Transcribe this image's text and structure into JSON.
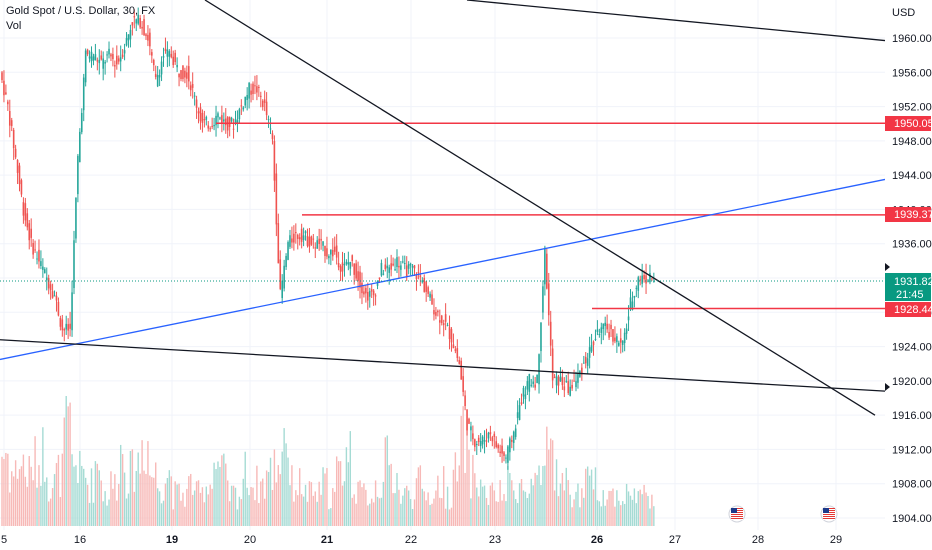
{
  "header": {
    "symbol_line": "Gold Spot / U.S. Dollar, 30, FX",
    "indicator": "Vol"
  },
  "axis": {
    "currency": "USD",
    "price_ticks": [
      "1960.00",
      "1956.00",
      "1952.00",
      "1948.00",
      "1944.00",
      "1940.00",
      "1936.00",
      "1932.00",
      "1928.00",
      "1924.00",
      "1920.00",
      "1916.00",
      "1912.00",
      "1908.00",
      "1904.00"
    ],
    "date_ticks": [
      {
        "label": "5",
        "bold": false
      },
      {
        "label": "16",
        "bold": false
      },
      {
        "label": "19",
        "bold": true
      },
      {
        "label": "20",
        "bold": false
      },
      {
        "label": "21",
        "bold": true
      },
      {
        "label": "22",
        "bold": false
      },
      {
        "label": "23",
        "bold": false
      },
      {
        "label": "26",
        "bold": true
      },
      {
        "label": "27",
        "bold": false
      },
      {
        "label": "28",
        "bold": false
      },
      {
        "label": "29",
        "bold": false
      }
    ]
  },
  "price_labels": {
    "level_1": "1950.05",
    "level_2": "1939.37",
    "current_price": "1931.82",
    "countdown": "21:45",
    "level_3": "1928.44"
  },
  "colors": {
    "up": "#26a69a",
    "down": "#ef5350",
    "level_line": "#f23645",
    "trend_blue": "#2962ff",
    "trend_black": "#131722",
    "current": "#089981",
    "axis_text": "#131722"
  },
  "chart_data": {
    "type": "candlestick",
    "title": "Gold Spot / U.S. Dollar, 30, FX",
    "ylabel": "USD",
    "ylim": [
      1902.5,
      1963.5
    ],
    "x_ticks": [
      "5",
      "16",
      "19",
      "20",
      "21",
      "22",
      "23",
      "26",
      "27",
      "28",
      "29"
    ],
    "horizontal_levels": [
      1950.05,
      1939.37,
      1928.44
    ],
    "current_price": 1931.82,
    "trendlines": [
      {
        "color": "blue",
        "from": {
          "date": "15",
          "price": 1922.5
        },
        "to": {
          "date": "29+",
          "price": 1943.5
        }
      },
      {
        "color": "black",
        "from": {
          "date": "15",
          "price": 1924.8
        },
        "to": {
          "date": "29+",
          "price": 1918.8
        }
      },
      {
        "color": "black",
        "from": {
          "date": "18",
          "price": 1964.0
        },
        "to": {
          "date": "29",
          "price": 1916.0
        }
      },
      {
        "color": "black",
        "from": {
          "date": "21",
          "price": 1964.0
        },
        "to": {
          "date": "29+",
          "price": 1959.7
        }
      }
    ],
    "price_path": [
      1956,
      1952,
      1946,
      1940,
      1936,
      1934,
      1932,
      1930,
      1926,
      1926,
      1946,
      1958,
      1958,
      1957,
      1958,
      1957,
      1959,
      1962,
      1962,
      1960,
      1955,
      1958,
      1958,
      1956,
      1956,
      1953,
      1950,
      1950,
      1951,
      1950,
      1950,
      1952,
      1954,
      1954,
      1952,
      1948,
      1930,
      1936,
      1937,
      1937,
      1936,
      1936,
      1935,
      1935,
      1933,
      1934,
      1932,
      1930,
      1930,
      1933,
      1933,
      1934,
      1933,
      1933,
      1932,
      1930,
      1928,
      1927,
      1925,
      1922,
      1915,
      1913,
      1913,
      1914,
      1912,
      1911,
      1914,
      1918,
      1920,
      1920,
      1935,
      1920,
      1920,
      1919,
      1920,
      1922,
      1924,
      1926,
      1926,
      1925,
      1924,
      1929,
      1932,
      1932
    ],
    "volume_path": [
      0.7,
      0.5,
      0.6,
      0.5,
      0.6,
      0.7,
      0.4,
      0.5,
      0.9,
      0.6,
      0.5,
      0.4,
      0.6,
      0.3,
      0.4,
      0.7,
      0.5,
      0.6,
      0.8,
      0.5,
      0.4,
      0.5,
      0.3,
      0.3,
      0.4,
      0.3,
      0.4,
      0.6,
      0.5,
      0.3,
      0.3,
      0.5,
      0.4,
      0.4,
      0.5,
      0.6,
      0.9,
      0.4,
      0.4,
      0.3,
      0.3,
      0.4,
      0.3,
      0.5,
      0.7,
      0.4,
      0.3,
      0.3,
      0.4,
      0.6,
      0.5,
      0.3,
      0.3,
      0.4,
      0.3,
      0.3,
      0.4,
      0.3,
      0.5,
      0.8,
      0.5,
      0.4,
      0.3,
      0.3,
      0.3,
      0.4,
      0.4,
      0.3,
      0.4,
      0.4,
      0.8,
      0.5,
      0.4,
      0.3,
      0.3,
      0.4,
      0.4,
      0.3,
      0.3,
      0.3,
      0.3,
      0.3,
      0.3,
      0.3
    ],
    "events": [
      {
        "date": "27",
        "icon": "us-flag-icon"
      },
      {
        "date": "29",
        "icon": "us-flag-icon"
      }
    ]
  }
}
